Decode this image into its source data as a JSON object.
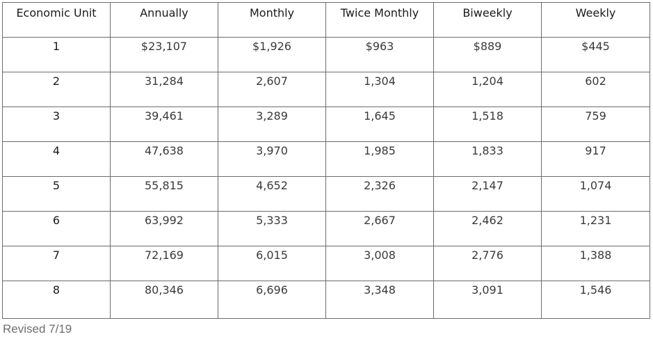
{
  "table": {
    "headers": [
      "Economic Unit",
      "Annually",
      "Monthly",
      "Twice Monthly",
      "Biweekly",
      "Weekly"
    ],
    "rows": [
      [
        "1",
        "$23,107",
        "$1,926",
        "$963",
        "$889",
        "$445"
      ],
      [
        "2",
        "31,284",
        "2,607",
        "1,304",
        "1,204",
        "602"
      ],
      [
        "3",
        "39,461",
        "3,289",
        "1,645",
        "1,518",
        "759"
      ],
      [
        "4",
        "47,638",
        "3,970",
        "1,985",
        "1,833",
        "917"
      ],
      [
        "5",
        "55,815",
        "4,652",
        "2,326",
        "2,147",
        "1,074"
      ],
      [
        "6",
        "63,992",
        "5,333",
        "2,667",
        "2,462",
        "1,231"
      ],
      [
        "7",
        "72,169",
        "6,015",
        "3,008",
        "2,776",
        "1,388"
      ],
      [
        "8",
        "80,346",
        "6,696",
        "3,348",
        "3,091",
        "1,546"
      ]
    ]
  },
  "footnote": "Revised 7/19",
  "colors": {
    "border": "#6b6b6b",
    "header_text": "#1a1a1a",
    "cell_text": "#3a3a3a",
    "footnote_text": "#6e6e6e"
  }
}
